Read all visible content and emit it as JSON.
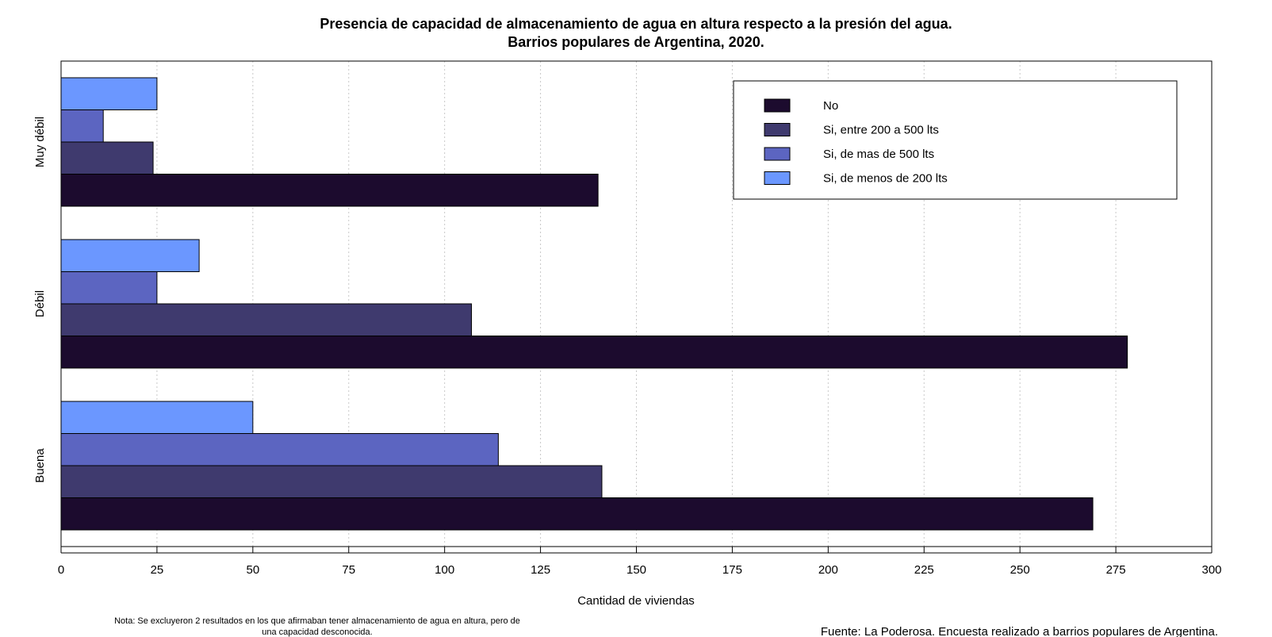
{
  "chart_data": {
    "type": "bar",
    "orientation": "horizontal",
    "title_lines": [
      "Presencia de capacidad de almacenamiento de agua en altura respecto a la presión del agua.",
      "Barrios populares de Argentina, 2020."
    ],
    "xlabel": "Cantidad de viviendas",
    "ylabel": "",
    "xlim": [
      0,
      300
    ],
    "xticks": [
      0,
      25,
      50,
      75,
      100,
      125,
      150,
      175,
      200,
      225,
      250,
      275,
      300
    ],
    "grid": "vertical dotted",
    "legend_position": "top-right",
    "categories": [
      "Buena",
      "Débil",
      "Muy débil"
    ],
    "series": [
      {
        "name": "No",
        "color": "#1c0b2e",
        "values": [
          269,
          278,
          140
        ]
      },
      {
        "name": "Si, entre 200 a 500 lts",
        "color": "#3f3a6e",
        "values": [
          141,
          107,
          24
        ]
      },
      {
        "name": "Si, de mas de 500 lts",
        "color": "#5c65c1",
        "values": [
          114,
          25,
          11
        ]
      },
      {
        "name": "Si, de menos de 200 lts",
        "color": "#6b97ff",
        "values": [
          50,
          36,
          25
        ]
      }
    ],
    "note_lines": [
      "Nota: Se excluyeron 2 resultados en los que afirmaban tener almacenamiento de agua en altura, pero de",
      "una capacidad desconocida."
    ],
    "source": "Fuente: La Poderosa. Encuesta realizado a barrios populares de Argentina."
  }
}
